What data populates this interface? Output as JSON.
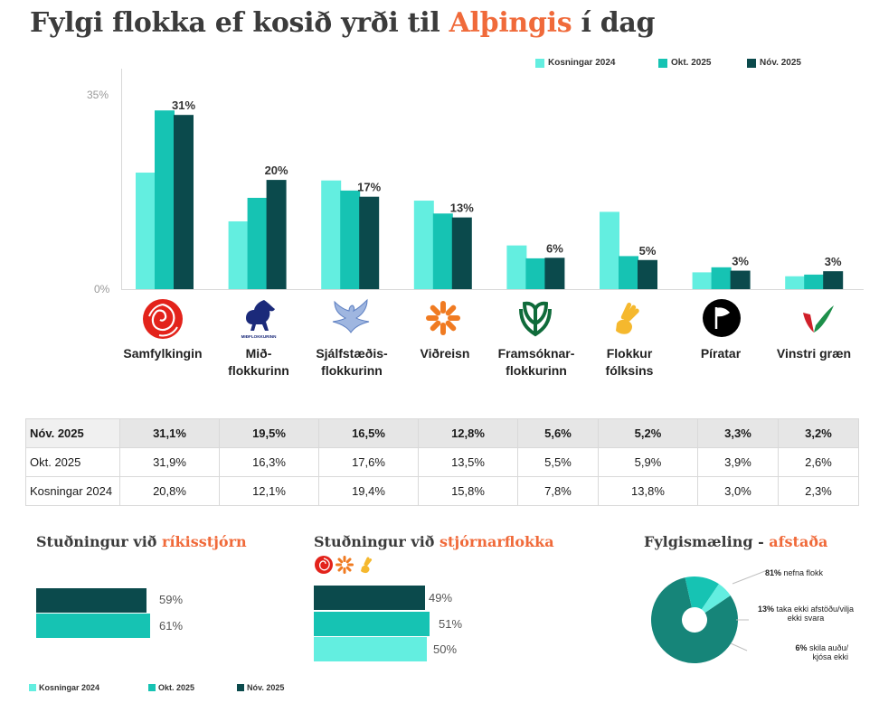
{
  "title": {
    "pre": "Fylgi flokka ef kosið yrði til ",
    "accent": "Alþingis",
    "post": " í dag"
  },
  "colors": {
    "kosningar": "#63eee0",
    "okt": "#16c3b3",
    "nov": "#0b4a4c",
    "accent": "#f06a3a"
  },
  "chart_data": {
    "type": "bar",
    "ylim": [
      0,
      35
    ],
    "y_ticks": [
      "35%",
      "0%"
    ],
    "categories": [
      "Samfylkingin",
      "Mið-flokkurinn",
      "Sjálfstæðis-flokkurinn",
      "Viðreisn",
      "Framsóknar-flokkurinn",
      "Flokkur fólksins",
      "Píratar",
      "Vinstri græn"
    ],
    "series": [
      {
        "name": "Kosningar 2024",
        "values": [
          20.8,
          12.1,
          19.4,
          15.8,
          7.8,
          13.8,
          3.0,
          2.3
        ]
      },
      {
        "name": "Okt. 2025",
        "values": [
          31.9,
          16.3,
          17.6,
          13.5,
          5.5,
          5.9,
          3.9,
          2.6
        ]
      },
      {
        "name": "Nóv. 2025",
        "values": [
          31.1,
          19.5,
          16.5,
          12.8,
          5.6,
          5.2,
          3.3,
          3.2
        ]
      }
    ],
    "data_labels": [
      "31%",
      "20%",
      "17%",
      "13%",
      "6%",
      "5%",
      "3%",
      "3%"
    ],
    "legend": "top-right"
  },
  "parties": [
    {
      "line1": "Samfylkingin",
      "line2": "",
      "icon": "rose-icon"
    },
    {
      "line1": "Mið-",
      "line2": "flokkurinn",
      "icon": "horse-icon",
      "logo_text": "MIÐFLOKKURINN"
    },
    {
      "line1": "Sjálfstæðis-",
      "line2": "flokkurinn",
      "icon": "falcon-icon"
    },
    {
      "line1": "Viðreisn",
      "line2": "",
      "icon": "sunburst-icon"
    },
    {
      "line1": "Framsóknar-",
      "line2": "flokkurinn",
      "icon": "clover-icon"
    },
    {
      "line1": "Flokkur",
      "line2": "fólksins",
      "icon": "hand-icon"
    },
    {
      "line1": "Píratar",
      "line2": "",
      "icon": "pirate-flag-icon"
    },
    {
      "line1": "Vinstri græn",
      "line2": "",
      "icon": "vg-icon"
    }
  ],
  "table": {
    "rows": [
      {
        "label": "Nóv. 2025",
        "values": [
          "31,1%",
          "19,5%",
          "16,5%",
          "12,8%",
          "5,6%",
          "5,2%",
          "3,3%",
          "3,2%"
        ]
      },
      {
        "label": "Okt. 2025",
        "values": [
          "31,9%",
          "16,3%",
          "17,6%",
          "13,5%",
          "5,5%",
          "5,9%",
          "3,9%",
          "2,6%"
        ]
      },
      {
        "label": "Kosningar 2024",
        "values": [
          "20,8%",
          "12,1%",
          "19,4%",
          "15,8%",
          "7,8%",
          "13,8%",
          "3,0%",
          "2,3%"
        ]
      }
    ]
  },
  "gov_support": {
    "title_pre": "Stuðningur við ",
    "title_accent": "ríkisstjórn",
    "bars": [
      {
        "series": "Nóv. 2025",
        "value": 59,
        "label": "59%"
      },
      {
        "series": "Okt. 2025",
        "value": 61,
        "label": "61%"
      }
    ]
  },
  "coalition_support": {
    "title_pre": "Stuðningur við ",
    "title_accent": "stjórnarflokka",
    "icons": [
      "rose-icon",
      "sunburst-icon",
      "hand-icon"
    ],
    "bars": [
      {
        "series": "Nóv. 2025",
        "value": 49,
        "label": "49%"
      },
      {
        "series": "Okt. 2025",
        "value": 51,
        "label": "51%"
      },
      {
        "series": "Kosningar 2024",
        "value": 50,
        "label": "50%"
      }
    ]
  },
  "bottom_legend": [
    "Kosningar 2024",
    "Okt. 2025",
    "Nóv. 2025"
  ],
  "poll_stance": {
    "title_pre": "Fylgismæling - ",
    "title_accent": "afstaða",
    "slices": [
      {
        "value": 81,
        "pct": "81%",
        "text": " nefna flokk",
        "color": "#168579"
      },
      {
        "value": 13,
        "pct": "13%",
        "text": " taka ekki afstöðu/vilja ekki svara",
        "color": "#16c3b3"
      },
      {
        "value": 6,
        "pct": "6%",
        "text": " skila auðu/ kjósa  ekki",
        "color": "#63eee0"
      }
    ],
    "label_2a": " taka ekki afstöðu/vilja",
    "label_2b": "ekki svara",
    "label_3a": " skila auðu/",
    "label_3b": "kjósa  ekki"
  }
}
